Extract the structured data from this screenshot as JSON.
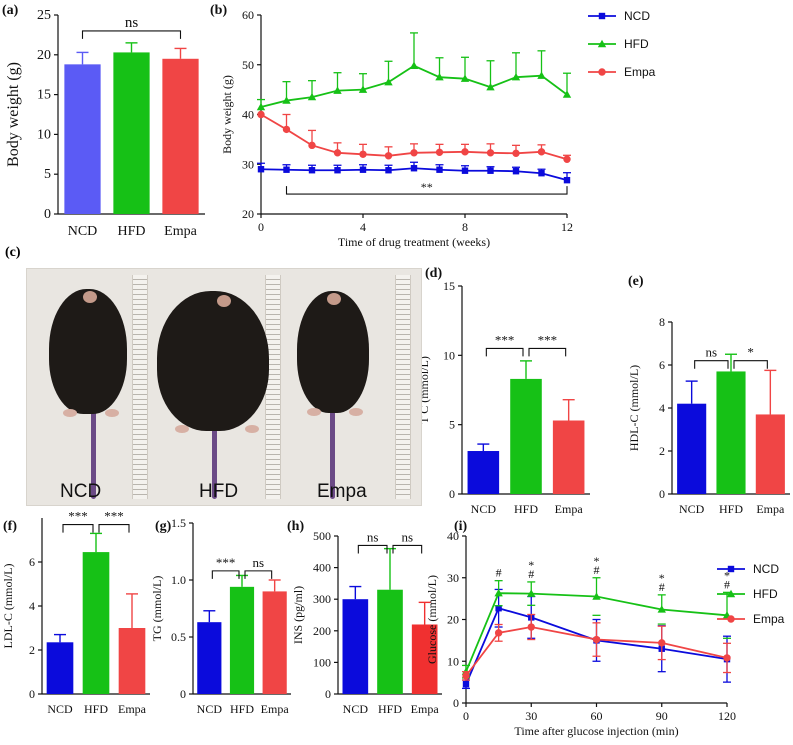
{
  "panel_labels": {
    "a": "(a)",
    "b": "(b)",
    "c": "(c)",
    "d": "(d)",
    "e": "(e)",
    "f": "(f)",
    "g": "(g)",
    "h": "(h)",
    "i": "(i)"
  },
  "photo": {
    "labels": [
      "NCD",
      "HFD",
      "Empa"
    ]
  },
  "colors": {
    "NCD": "#0b0bdc",
    "HFD": "#16c116",
    "Empa": "#f04545",
    "NCD_a": "#5b5bf5",
    "Empa_red": "#f03030"
  },
  "chart_data": [
    {
      "id": "a",
      "type": "bar",
      "categories": [
        "NCD",
        "HFD",
        "Empa"
      ],
      "values": [
        18.8,
        20.3,
        19.5
      ],
      "errors": [
        1.5,
        1.2,
        1.3
      ],
      "ylabel": "Body weight (g)",
      "ylim": [
        0,
        25
      ],
      "yticks": [
        0,
        5,
        10,
        15,
        20,
        25
      ],
      "annotations": [
        {
          "from": 0,
          "to": 2,
          "text": "ns",
          "y": 23
        }
      ]
    },
    {
      "id": "b",
      "type": "line",
      "xlabel": "Time of drug treatment  (weeks)",
      "ylabel": "Body weight (g)",
      "xlim": [
        0,
        12
      ],
      "ylim": [
        20,
        60
      ],
      "xticks": [
        0,
        4,
        8,
        12
      ],
      "yticks": [
        20,
        30,
        40,
        50,
        60
      ],
      "x": [
        0,
        1,
        2,
        3,
        4,
        5,
        6,
        7,
        8,
        9,
        10,
        11,
        12
      ],
      "series": [
        {
          "name": "NCD",
          "marker": "square",
          "values": [
            29,
            28.9,
            28.8,
            28.8,
            28.9,
            28.8,
            29.2,
            28.9,
            28.7,
            28.7,
            28.6,
            28.2,
            26.8
          ],
          "errors": [
            1.2,
            1.0,
            1.0,
            1.0,
            1.0,
            1.0,
            1.2,
            1.0,
            1.0,
            0.8,
            0.8,
            0.8,
            1.5
          ]
        },
        {
          "name": "HFD",
          "marker": "triangle",
          "values": [
            41.5,
            42.8,
            43.5,
            44.8,
            45,
            46.5,
            49.8,
            47.5,
            47.2,
            45.5,
            47.5,
            47.8,
            44
          ],
          "errors": [
            1.5,
            3.8,
            3.3,
            3.6,
            3.2,
            4.2,
            6.6,
            3.9,
            4.3,
            5.3,
            4.9,
            5.0,
            4.3
          ]
        },
        {
          "name": "Empa",
          "marker": "circle",
          "values": [
            40,
            37,
            33.8,
            32.3,
            32,
            31.7,
            32.3,
            32.4,
            32.5,
            32.3,
            32.2,
            32.5,
            31
          ],
          "errors": [
            0,
            3.0,
            3.0,
            2.0,
            2.0,
            1.8,
            1.8,
            1.6,
            1.5,
            1.8,
            1.6,
            1.4,
            0.8
          ]
        }
      ],
      "annotations": [
        {
          "from": 1,
          "to": 12,
          "text": "**",
          "y": 24
        }
      ]
    },
    {
      "id": "d",
      "type": "bar",
      "categories": [
        "NCD",
        "HFD",
        "Empa"
      ],
      "values": [
        3.1,
        8.3,
        5.3
      ],
      "errors": [
        0.5,
        1.3,
        1.5
      ],
      "ylabel": "T C  (mmol/L)",
      "ylim": [
        0,
        15
      ],
      "yticks": [
        0,
        5,
        10,
        15
      ],
      "annotations": [
        {
          "from": 0,
          "to": 1,
          "text": "***",
          "y": 10.5
        },
        {
          "from": 1,
          "to": 2,
          "text": "***",
          "y": 10.5
        }
      ]
    },
    {
      "id": "e",
      "type": "bar",
      "categories": [
        "NCD",
        "HFD",
        "Empa"
      ],
      "values": [
        4.2,
        5.7,
        3.7
      ],
      "errors": [
        1.05,
        0.8,
        2.05
      ],
      "ylabel": "HDL-C  (mmol/L)",
      "ylim": [
        0,
        8
      ],
      "yticks": [
        0,
        2,
        4,
        6,
        8
      ],
      "annotations": [
        {
          "from": 0,
          "to": 1,
          "text": "ns",
          "y": 6.2
        },
        {
          "from": 1,
          "to": 2,
          "text": "*",
          "y": 6.2
        }
      ]
    },
    {
      "id": "f",
      "type": "bar",
      "categories": [
        "NCD",
        "HFD",
        "Empa"
      ],
      "values": [
        2.35,
        6.45,
        3.0
      ],
      "errors": [
        0.35,
        0.85,
        1.55
      ],
      "ylabel": "LDL-C  (mmol/L)",
      "ylim": [
        0,
        8
      ],
      "yticks": [
        0,
        2,
        4,
        6
      ],
      "annotations": [
        {
          "from": 0,
          "to": 1,
          "text": "***",
          "y": 7.7
        },
        {
          "from": 1,
          "to": 2,
          "text": "***",
          "y": 7.7
        }
      ]
    },
    {
      "id": "g",
      "type": "bar",
      "categories": [
        "NCD",
        "HFD",
        "Empa"
      ],
      "values": [
        0.63,
        0.94,
        0.9
      ],
      "errors": [
        0.1,
        0.1,
        0.1
      ],
      "ylabel": "TG  (mmol/L)",
      "ylim": [
        0,
        1.5
      ],
      "yticks": [
        0,
        0.5,
        1.0,
        1.5
      ],
      "yticklabels": [
        "0",
        "0.5",
        "1.0",
        "1.5"
      ],
      "annotations": [
        {
          "from": 0,
          "to": 1,
          "text": "***",
          "y": 1.08
        },
        {
          "from": 1,
          "to": 2,
          "text": "ns",
          "y": 1.08
        }
      ]
    },
    {
      "id": "h",
      "type": "bar",
      "categories": [
        "NCD",
        "HFD",
        "Empa"
      ],
      "values": [
        300,
        330,
        220
      ],
      "errors": [
        40,
        130,
        70
      ],
      "ylabel": "INS  (pg/ml)",
      "ylim": [
        0,
        500
      ],
      "yticks": [
        0,
        100,
        200,
        300,
        400,
        500
      ],
      "annotations": [
        {
          "from": 0,
          "to": 1,
          "text": "ns",
          "y": 470
        },
        {
          "from": 1,
          "to": 2,
          "text": "ns",
          "y": 470
        }
      ]
    },
    {
      "id": "i",
      "type": "line",
      "xlabel": "Time after glucose injection (min)",
      "ylabel": "Glucose  (mmol/L)",
      "xlim": [
        0,
        120
      ],
      "ylim": [
        0,
        40
      ],
      "xticks": [
        0,
        30,
        60,
        90,
        120
      ],
      "yticks": [
        0,
        10,
        20,
        30,
        40
      ],
      "x": [
        0,
        15,
        30,
        60,
        90,
        120
      ],
      "series": [
        {
          "name": "NCD",
          "marker": "square",
          "values": [
            4.5,
            22.7,
            20.5,
            15,
            13,
            10.5
          ],
          "errors": [
            1.0,
            4.5,
            5.0,
            5.0,
            5.5,
            5.5
          ]
        },
        {
          "name": "HFD",
          "marker": "triangle",
          "values": [
            7.5,
            26.3,
            26.2,
            25.5,
            22.4,
            21
          ],
          "errors": [
            1.5,
            3.0,
            2.8,
            4.5,
            3.5,
            5.5
          ]
        },
        {
          "name": "Empa",
          "marker": "circle",
          "values": [
            6.5,
            16.8,
            18.2,
            15.2,
            14.4,
            10.8
          ],
          "errors": [
            1.0,
            2.0,
            3.0,
            4.0,
            4.0,
            3.5
          ]
        }
      ],
      "markers_text": [
        {
          "x": 15,
          "text": "#"
        },
        {
          "x": 30,
          "text": "*\n#"
        },
        {
          "x": 60,
          "text": "*\n#"
        },
        {
          "x": 90,
          "text": "*\n#"
        },
        {
          "x": 120,
          "text": "*\n#"
        }
      ]
    }
  ]
}
